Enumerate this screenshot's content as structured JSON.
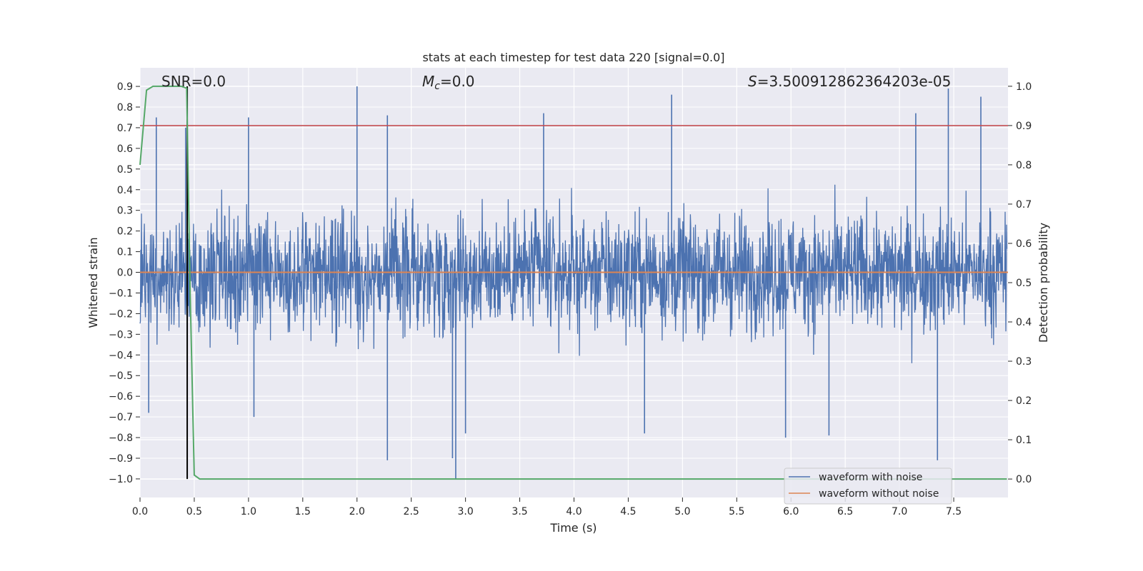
{
  "chart_data": {
    "type": "line",
    "title": "stats at each timestep for test data 220 [signal=0.0]",
    "xlabel": "Time (s)",
    "ylabel_left": "Whitened strain",
    "ylabel_right": "Detection probability",
    "xlim": [
      0.0,
      8.0
    ],
    "ylim_left": [
      -1.09,
      0.99
    ],
    "ylim_right": [
      -0.047,
      1.047
    ],
    "x_ticks": [
      "0.0",
      "0.5",
      "1.0",
      "1.5",
      "2.0",
      "2.5",
      "3.0",
      "3.5",
      "4.0",
      "4.5",
      "5.0",
      "5.5",
      "6.0",
      "6.5",
      "7.0",
      "7.5"
    ],
    "y_ticks_left": [
      "0.9",
      "0.8",
      "0.7",
      "0.6",
      "0.5",
      "0.4",
      "0.3",
      "0.2",
      "0.1",
      "0.0",
      "−0.1",
      "−0.2",
      "−0.3",
      "−0.4",
      "−0.5",
      "−0.6",
      "−0.7",
      "−0.8",
      "−0.9",
      "−1.0"
    ],
    "y_ticks_right": [
      "1.0",
      "0.9",
      "0.8",
      "0.7",
      "0.6",
      "0.5",
      "0.4",
      "0.3",
      "0.2",
      "0.1",
      "0.0"
    ],
    "grid": true,
    "legend_position": "lower-right",
    "annotations": {
      "snr": "SNR=0.0",
      "mc": "M",
      "mc_sub": "c",
      "mc_value": "=0.0",
      "s": "S",
      "s_value": "=3.500912862364203e-05"
    },
    "series": [
      {
        "name": "waveform with noise",
        "color": "#4c72b0",
        "axis": "left",
        "description_values": "dense noise oscillating roughly between -0.5 and 0.5 with spikes",
        "peaks": [
          [
            0.15,
            0.75
          ],
          [
            0.42,
            0.7
          ],
          [
            1.0,
            0.75
          ],
          [
            2.0,
            0.9
          ],
          [
            2.28,
            0.76
          ],
          [
            3.72,
            0.77
          ],
          [
            4.9,
            0.86
          ],
          [
            7.15,
            0.77
          ],
          [
            7.45,
            0.89
          ],
          [
            7.75,
            0.85
          ]
        ],
        "troughs": [
          [
            0.08,
            -0.68
          ],
          [
            1.05,
            -0.7
          ],
          [
            2.28,
            -0.91
          ],
          [
            2.88,
            -0.9
          ],
          [
            2.91,
            -1.0
          ],
          [
            3.0,
            -0.78
          ],
          [
            4.65,
            -0.78
          ],
          [
            5.95,
            -0.8
          ],
          [
            6.35,
            -0.79
          ],
          [
            7.35,
            -0.91
          ]
        ]
      },
      {
        "name": "waveform without noise",
        "color": "#dd8452",
        "axis": "left",
        "x": [
          0.0,
          8.0
        ],
        "y": [
          0.0,
          0.0
        ]
      },
      {
        "name": "detection probability",
        "color": "#55a868",
        "axis": "right",
        "x": [
          0.0,
          0.06,
          0.12,
          0.2,
          0.3,
          0.38,
          0.43,
          0.46,
          0.5,
          0.55,
          0.6,
          1.0,
          2.0,
          4.0,
          6.0,
          7.99
        ],
        "y": [
          0.8,
          0.99,
          1.0,
          1.0,
          1.0,
          1.0,
          0.995,
          0.5,
          0.01,
          0.0,
          0.0,
          0.0,
          0.0,
          0.0,
          0.0,
          0.0
        ]
      },
      {
        "name": "threshold",
        "color": "#c44e52",
        "axis": "right",
        "x": [
          0.0,
          8.0
        ],
        "y": [
          0.9,
          0.9
        ]
      }
    ],
    "vertical_marker": {
      "x": 0.435,
      "color": "#000000",
      "y_from_right": 0.0,
      "y_to_right": 1.0
    }
  }
}
